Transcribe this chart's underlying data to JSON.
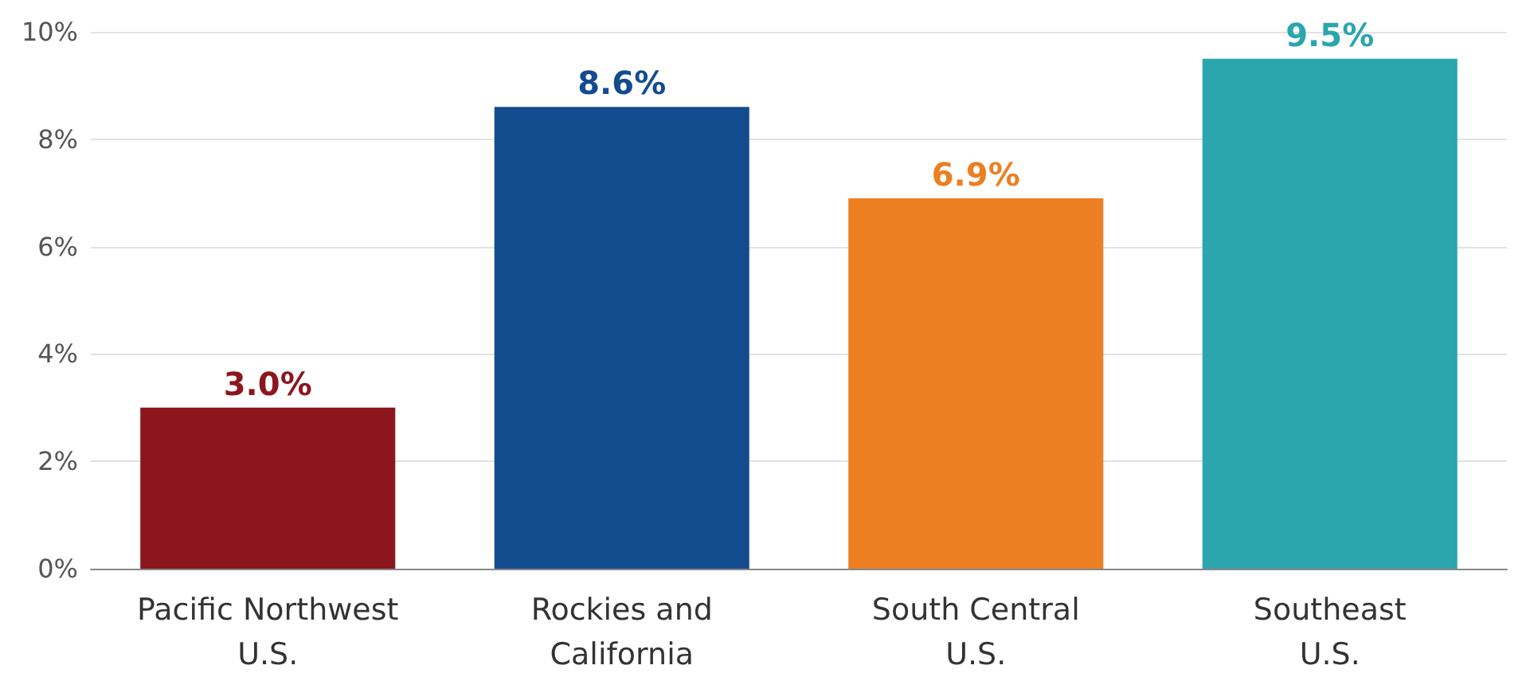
{
  "chart_data": {
    "type": "bar",
    "categories": [
      "Pacific Northwest\nU.S.",
      "Rockies and\nCalifornia",
      "South Central\nU.S.",
      "Southeast\nU.S."
    ],
    "values": [
      3.0,
      8.6,
      6.9,
      9.5
    ],
    "colors": [
      "#8b161c",
      "#124c8f",
      "#ec7f22",
      "#2ba5ae"
    ],
    "value_labels": [
      "3.0%",
      "8.6%",
      "6.9%",
      "9.5%"
    ],
    "ylim": [
      0,
      10
    ],
    "yticks": [
      {
        "value": 0,
        "label": "0%"
      },
      {
        "value": 2,
        "label": "2%"
      },
      {
        "value": 4,
        "label": "4%"
      },
      {
        "value": 6,
        "label": "6%"
      },
      {
        "value": 8,
        "label": "8%"
      },
      {
        "value": 10,
        "label": "10%"
      }
    ],
    "grid": "y"
  }
}
